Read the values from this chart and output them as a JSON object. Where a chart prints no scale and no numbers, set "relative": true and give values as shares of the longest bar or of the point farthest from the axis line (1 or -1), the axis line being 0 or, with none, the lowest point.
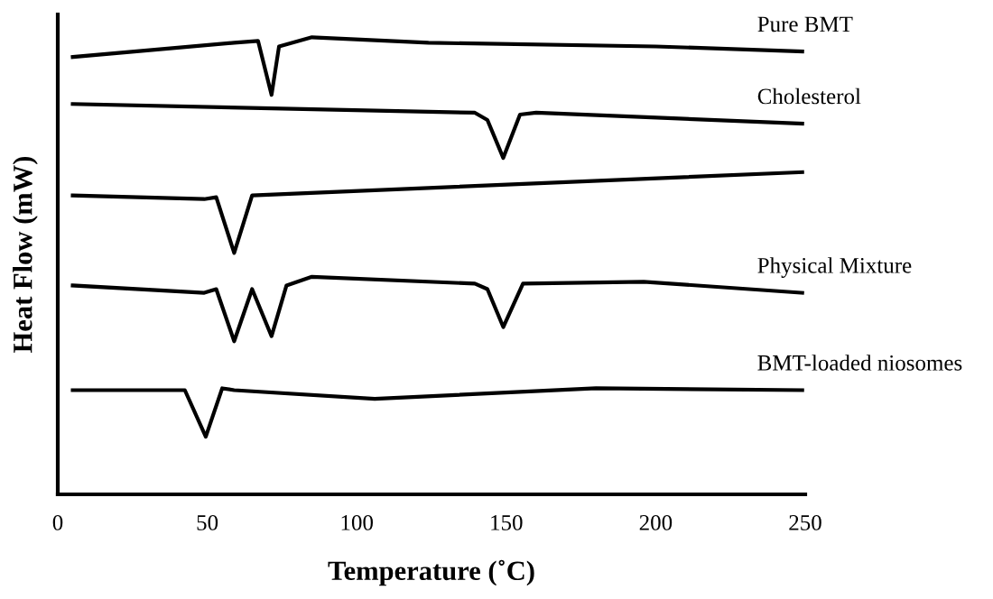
{
  "chart_data": {
    "type": "line",
    "relative": true,
    "xlabel": "Temperature (˚C)",
    "ylabel": "Heat Flow (mW)",
    "xlim": [
      0,
      250
    ],
    "xticks": [
      0,
      50,
      100,
      150,
      200,
      250
    ],
    "grid": false,
    "legend": false,
    "marker": "none",
    "line_style": "solid",
    "series": [
      {
        "name": "Pure BMT",
        "color": "#000000",
        "x": [
          5,
          59,
          67,
          71.5,
          74,
          85,
          124,
          200,
          249
        ],
        "values": [
          0.957,
          0.988,
          0.992,
          0.874,
          0.98,
          1.0,
          0.988,
          0.98,
          0.969
        ]
      },
      {
        "name": "Cholesterol",
        "color": "#000000",
        "x": [
          5,
          139.5,
          143.7,
          149,
          154.6,
          160,
          249
        ],
        "values": [
          0.854,
          0.835,
          0.819,
          0.736,
          0.831,
          0.835,
          0.811
        ]
      },
      {
        "color": "#000000",
        "x": [
          5,
          49,
          53,
          59,
          65,
          249
        ],
        "values": [
          0.654,
          0.646,
          0.65,
          0.528,
          0.654,
          0.705
        ]
      },
      {
        "name": "Physical Mixture",
        "color": "#000000",
        "x": [
          5,
          49,
          53,
          59,
          65,
          71.5,
          76.5,
          85,
          139.5,
          143.7,
          149,
          155.6,
          196,
          249
        ],
        "values": [
          0.457,
          0.441,
          0.449,
          0.335,
          0.449,
          0.346,
          0.457,
          0.476,
          0.461,
          0.449,
          0.366,
          0.461,
          0.465,
          0.441
        ]
      },
      {
        "name": "BMT-loaded niosomes",
        "color": "#000000",
        "x": [
          5,
          42.5,
          49.5,
          55,
          59,
          106,
          180,
          249
        ],
        "values": [
          0.228,
          0.228,
          0.126,
          0.232,
          0.228,
          0.209,
          0.232,
          0.228
        ]
      }
    ]
  }
}
